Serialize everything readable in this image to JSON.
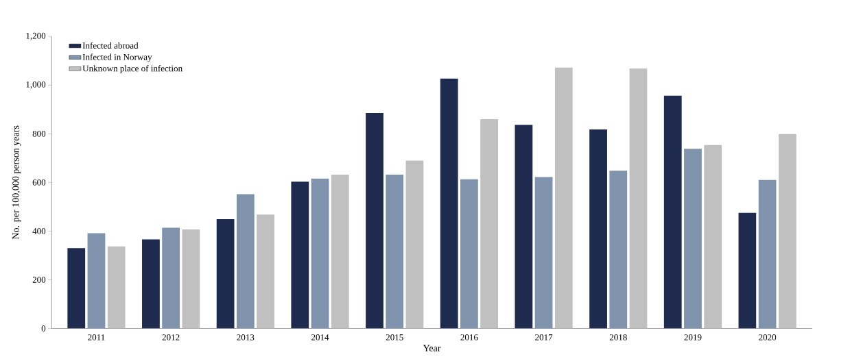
{
  "chart_data": {
    "type": "bar",
    "xlabel": "Year",
    "ylabel": "No. per 100,000 person years",
    "categories": [
      "2011",
      "2012",
      "2013",
      "2014",
      "2015",
      "2016",
      "2017",
      "2018",
      "2019",
      "2020"
    ],
    "series": [
      {
        "name": "Infected abroad",
        "color": "#1f2a4f",
        "values": [
          330,
          366,
          449,
          603,
          885,
          1027,
          837,
          818,
          956,
          475
        ]
      },
      {
        "name": "Infected in Norway",
        "color": "#7f93ad",
        "values": [
          391,
          414,
          552,
          616,
          632,
          613,
          622,
          648,
          738,
          610
        ]
      },
      {
        "name": "Unknown place of infection",
        "color": "#c0c0c0",
        "values": [
          337,
          407,
          468,
          632,
          690,
          860,
          1072,
          1068,
          754,
          799
        ]
      }
    ],
    "ylim": [
      0,
      1200
    ],
    "yticks": [
      0,
      200,
      400,
      600,
      800,
      {
        "value": 1000,
        "label": "1,000"
      },
      {
        "value": 1200,
        "label": "1,200"
      }
    ],
    "grid": false,
    "legend": "top left"
  }
}
